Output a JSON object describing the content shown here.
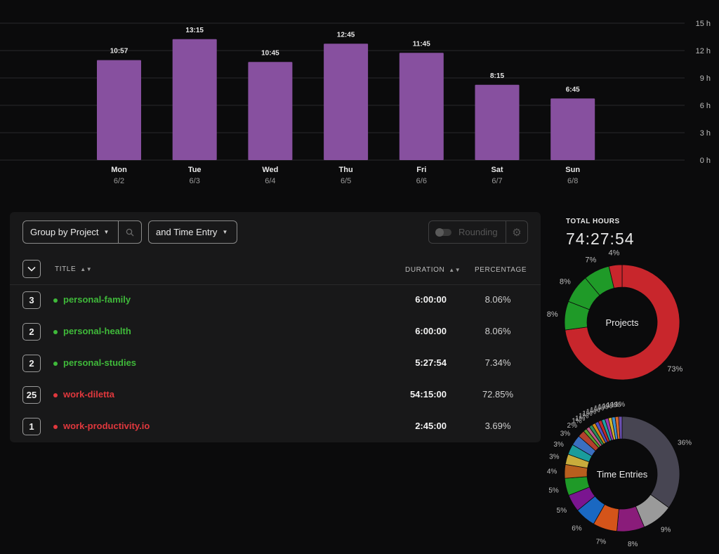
{
  "week_chart": {
    "chart_data": {
      "type": "bar",
      "categories": [
        "Mon",
        "Tue",
        "Wed",
        "Thu",
        "Fri",
        "Sat",
        "Sun"
      ],
      "dates": [
        "6/2",
        "6/3",
        "6/4",
        "6/5",
        "6/6",
        "6/7",
        "6/8"
      ],
      "values": [
        10.95,
        13.25,
        10.75,
        12.75,
        11.75,
        8.25,
        6.75
      ],
      "value_labels": [
        "10:57",
        "13:15",
        "10:45",
        "12:45",
        "11:45",
        "8:15",
        "6:45"
      ],
      "yticks": [
        "0 h",
        "3 h",
        "6 h",
        "9 h",
        "12 h",
        "15 h"
      ],
      "ylim": [
        0,
        15
      ],
      "grid": true,
      "bar_color": "#87509f"
    }
  },
  "toolbar": {
    "group_label": "Group by Project",
    "entry_label": "and Time Entry",
    "rounding_label": "Rounding",
    "search_icon": "search-icon",
    "gear_icon": "gear-icon"
  },
  "table": {
    "col_title": "TITLE",
    "col_duration": "DURATION",
    "col_percentage": "PERCENTAGE",
    "rows": [
      {
        "count": "3",
        "name": "personal-family",
        "duration": "6:00:00",
        "percentage": "8.06%",
        "color": "#3fb93a"
      },
      {
        "count": "2",
        "name": "personal-health",
        "duration": "6:00:00",
        "percentage": "8.06%",
        "color": "#3fb93a"
      },
      {
        "count": "2",
        "name": "personal-studies",
        "duration": "5:27:54",
        "percentage": "7.34%",
        "color": "#3fb93a"
      },
      {
        "count": "25",
        "name": "work-diletta",
        "duration": "54:15:00",
        "percentage": "72.85%",
        "color": "#e0383d"
      },
      {
        "count": "1",
        "name": "work-productivity.io",
        "duration": "2:45:00",
        "percentage": "3.69%",
        "color": "#e0383d"
      }
    ]
  },
  "summary": {
    "total_label": "TOTAL HOURS",
    "total_value": "74:27:54"
  },
  "projects_chart": {
    "chart_data": {
      "type": "pie",
      "title": "Projects",
      "slices": [
        {
          "value": 72.85,
          "label": "73%",
          "color": "#c8262c"
        },
        {
          "value": 8.06,
          "label": "8%",
          "color": "#1f9a28"
        },
        {
          "value": 8.06,
          "label": "8%",
          "color": "#1f9a28"
        },
        {
          "value": 7.34,
          "label": "7%",
          "color": "#1f9a28"
        },
        {
          "value": 3.69,
          "label": "4%",
          "color": "#c8262c"
        }
      ]
    }
  },
  "entries_chart": {
    "chart_data": {
      "type": "pie",
      "title": "Time Entries",
      "slices": [
        {
          "value": 36,
          "label": "36%",
          "color": "#474552"
        },
        {
          "value": 9,
          "label": "9%",
          "color": "#9a9a9a"
        },
        {
          "value": 8,
          "label": "8%",
          "color": "#8a1c7a"
        },
        {
          "value": 7,
          "label": "7%",
          "color": "#d4541a"
        },
        {
          "value": 6,
          "label": "6%",
          "color": "#1a68c2"
        },
        {
          "value": 5,
          "label": "5%",
          "color": "#7a1590"
        },
        {
          "value": 5,
          "label": "5%",
          "color": "#1f9a28"
        },
        {
          "value": 4,
          "label": "4%",
          "color": "#b85f1e"
        },
        {
          "value": 3,
          "label": "3%",
          "color": "#c9ac3c"
        },
        {
          "value": 3,
          "label": "3%",
          "color": "#1a9c9c"
        },
        {
          "value": 3,
          "label": "3%",
          "color": "#3b6fc0"
        },
        {
          "value": 2,
          "label": "2%",
          "color": "#b3402d"
        },
        {
          "value": 1,
          "label": "1%",
          "color": "#5da030"
        },
        {
          "value": 1,
          "label": "1%",
          "color": "#c05b88"
        },
        {
          "value": 1,
          "label": "1%",
          "color": "#2c8c5a"
        },
        {
          "value": 1,
          "label": "1%",
          "color": "#d48a18"
        },
        {
          "value": 1,
          "label": "1%",
          "color": "#4f4fc0"
        },
        {
          "value": 1,
          "label": "1%",
          "color": "#c02a2a"
        },
        {
          "value": 1,
          "label": "1%",
          "color": "#20a0a0"
        },
        {
          "value": 1,
          "label": "1%",
          "color": "#9b3cb0"
        },
        {
          "value": 1,
          "label": "1%",
          "color": "#d0b030"
        },
        {
          "value": 1,
          "label": "1%",
          "color": "#3f8fd0"
        },
        {
          "value": 1,
          "label": "1%",
          "color": "#d86a2a"
        },
        {
          "value": 1,
          "label": "1%",
          "color": "#6a4fb0"
        }
      ]
    }
  }
}
